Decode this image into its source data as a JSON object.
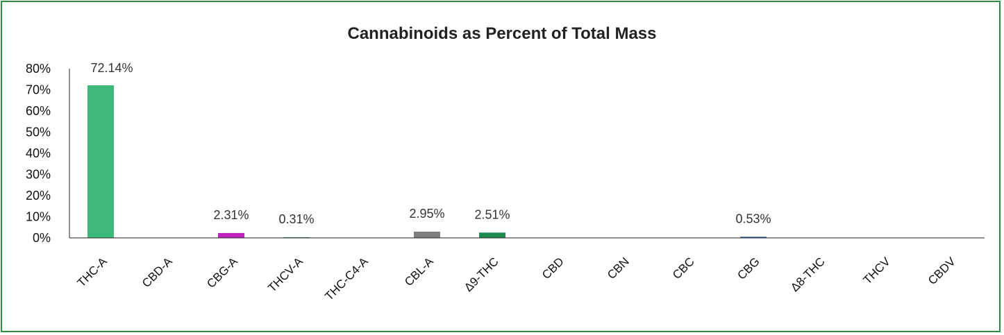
{
  "chart_data": {
    "type": "bar",
    "title": "Cannabinoids as Percent of Total Mass",
    "xlabel": "",
    "ylabel": "",
    "ylim": [
      0,
      80
    ],
    "yticks": [
      "0%",
      "10%",
      "20%",
      "30%",
      "40%",
      "50%",
      "60%",
      "70%",
      "80%"
    ],
    "categories": [
      "THC-A",
      "CBD-A",
      "CBG-A",
      "THCV-A",
      "THC-C4-A",
      "CBL-A",
      "Δ9-THC",
      "CBD",
      "CBN",
      "CBC",
      "CBG",
      "Δ8-THC",
      "THCV",
      "CBDV"
    ],
    "values": [
      72.14,
      0,
      2.31,
      0.31,
      0,
      2.95,
      2.51,
      0,
      0,
      0,
      0.53,
      0,
      0,
      0
    ],
    "data_labels": [
      "72.14%",
      "",
      "2.31%",
      "0.31%",
      "",
      "2.95%",
      "2.51%",
      "",
      "",
      "",
      "0.53%",
      "",
      "",
      ""
    ],
    "bar_colors": [
      "#3cb878",
      "#3cb878",
      "#c020c0",
      "#2a8a4a",
      "#3cb878",
      "#808080",
      "#1a8a50",
      "#3cb878",
      "#3cb878",
      "#3cb878",
      "#2a5fa8",
      "#3cb878",
      "#3cb878",
      "#3cb878"
    ],
    "grid": false,
    "legend": "none"
  }
}
